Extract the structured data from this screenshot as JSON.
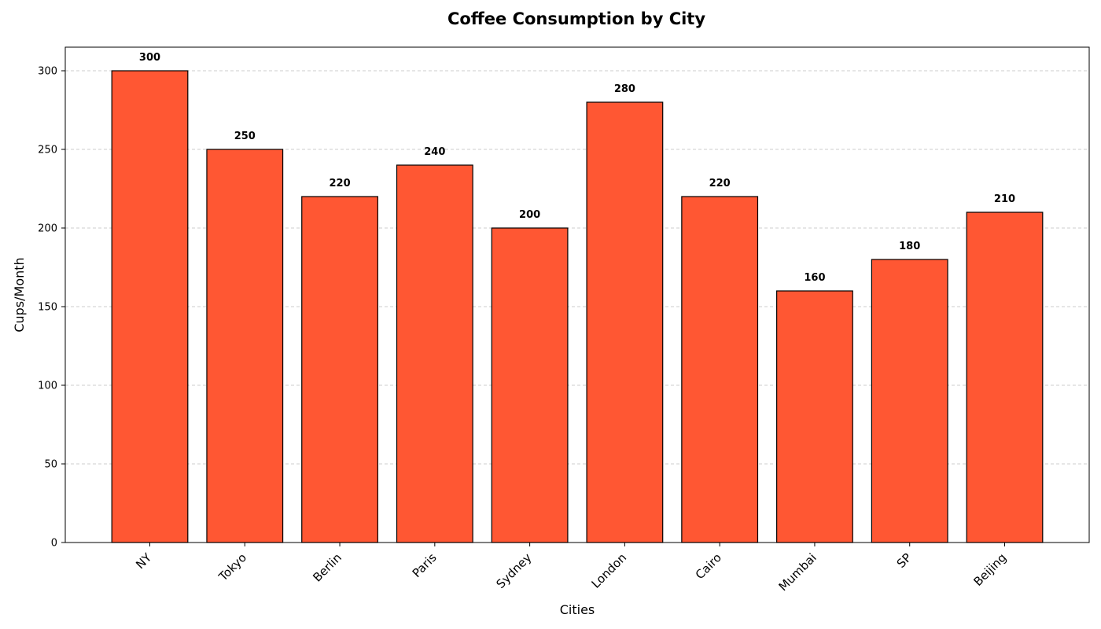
{
  "chart_data": {
    "type": "bar",
    "title": "Coffee Consumption by City",
    "xlabel": "Cities",
    "ylabel": "Cups/Month",
    "categories": [
      "NY",
      "Tokyo",
      "Berlin",
      "Paris",
      "Sydney",
      "London",
      "Cairo",
      "Mumbai",
      "SP",
      "Beijing"
    ],
    "values": [
      300,
      250,
      220,
      240,
      200,
      280,
      220,
      160,
      180,
      210
    ],
    "ylim": [
      0,
      315
    ],
    "yticks": [
      0,
      50,
      100,
      150,
      200,
      250,
      300
    ],
    "grid": "y-axis dashed",
    "bar_color": "#ff5733",
    "bar_edge_color": "#000000",
    "data_labels": true,
    "xtick_rotation": "45-degrees"
  }
}
